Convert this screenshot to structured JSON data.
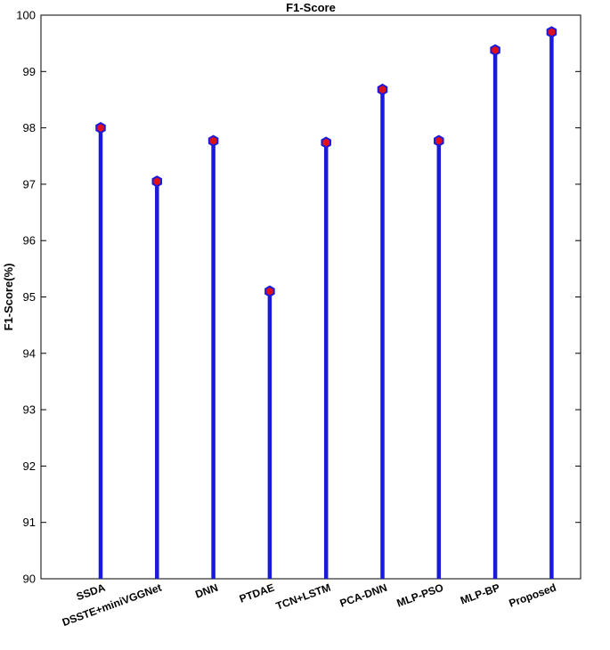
{
  "chart_data": {
    "type": "stem",
    "title": "F1-Score",
    "xlabel": "",
    "ylabel": "F1-Score(%)",
    "ylim": [
      90,
      100
    ],
    "yticks": [
      90,
      91,
      92,
      93,
      94,
      95,
      96,
      97,
      98,
      99,
      100
    ],
    "grid": false,
    "categories": [
      "SSDA",
      "DSSTE+miniVGGNet",
      "DNN",
      "PTDAE",
      "TCN+LSTM",
      "PCA-DNN",
      "MLP-PSO",
      "MLP-BP",
      "Proposed"
    ],
    "values": [
      98.0,
      97.05,
      97.77,
      95.1,
      97.74,
      98.68,
      97.77,
      99.38,
      99.7
    ],
    "colors": {
      "stem": "#1a1adc",
      "marker_fill": "#e0101a",
      "marker_edge": "#1a1adc"
    }
  }
}
